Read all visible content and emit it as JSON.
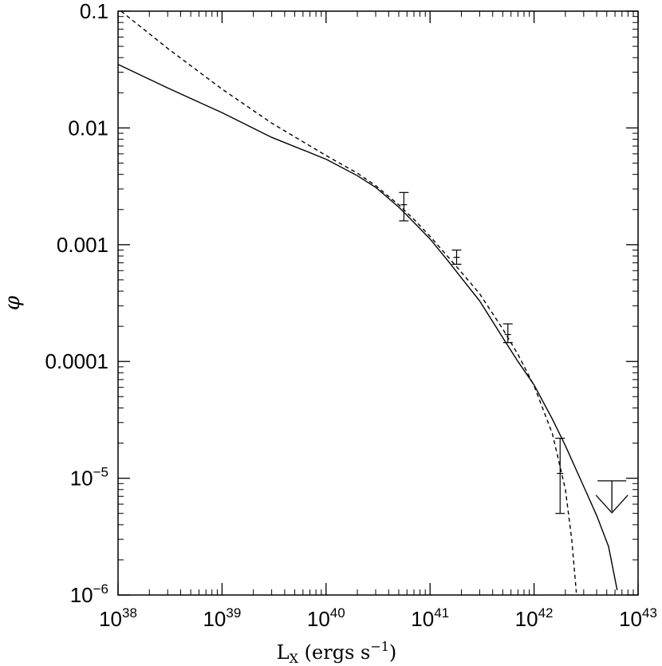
{
  "chart_data": {
    "type": "line",
    "xlabel": "L",
    "xlabel_sub": "X",
    "xlabel_units": " (ergs s",
    "xlabel_units_sup": "−1",
    "xlabel_units_close": ")",
    "ylabel": "φ",
    "x_scale": "log",
    "y_scale": "log",
    "xlim": [
      1e+38,
      1e+43
    ],
    "ylim": [
      1e-06,
      0.1
    ],
    "grid": false,
    "legend": "none",
    "x_ticks": [
      {
        "value": 1e+38,
        "base": "10",
        "exp": "38"
      },
      {
        "value": 1e+39,
        "base": "10",
        "exp": "39"
      },
      {
        "value": 1e+40,
        "base": "10",
        "exp": "40"
      },
      {
        "value": 1e+41,
        "base": "10",
        "exp": "41"
      },
      {
        "value": 1e+42,
        "base": "10",
        "exp": "42"
      },
      {
        "value": 1e+43,
        "base": "10",
        "exp": "43"
      }
    ],
    "y_ticks": [
      {
        "value": 0.1,
        "text": "0.1"
      },
      {
        "value": 0.01,
        "text": "0.01"
      },
      {
        "value": 0.001,
        "text": "0.001"
      },
      {
        "value": 0.0001,
        "text": "0.0001"
      },
      {
        "value": 1e-05,
        "base": "10",
        "exp": "−5"
      },
      {
        "value": 1e-06,
        "base": "10",
        "exp": "−6"
      }
    ],
    "series": [
      {
        "style": "solid",
        "x": [
          1e+38,
          3e+38,
          1e+39,
          3e+39,
          1e+40,
          2e+40,
          3e+40,
          5e+40,
          7e+40,
          1e+41,
          1.5e+41,
          2e+41,
          3e+41,
          5e+41,
          7e+41,
          1e+42,
          1.5e+42,
          2e+42,
          3e+42,
          4e+42,
          5.2e+42,
          6.3e+42
        ],
        "y": [
          0.035,
          0.022,
          0.0135,
          0.0083,
          0.0054,
          0.0039,
          0.0031,
          0.0021,
          0.00155,
          0.00112,
          0.00072,
          0.00052,
          0.00033,
          0.00016,
          0.0001,
          6.3e-05,
          3.2e-05,
          1.9e-05,
          8.5e-06,
          4.8e-06,
          2.6e-06,
          1.1e-06
        ]
      },
      {
        "style": "dashed",
        "x": [
          1.07e+38,
          3e+38,
          1e+39,
          3e+39,
          1e+40,
          2e+40,
          3e+40,
          5e+40,
          7e+40,
          1e+41,
          1.5e+41,
          2e+41,
          3e+41,
          5e+41,
          7e+41,
          1e+42,
          1.5e+42,
          2e+42,
          2.3e+42,
          2.55e+42
        ],
        "y": [
          0.1,
          0.048,
          0.0215,
          0.011,
          0.0058,
          0.0041,
          0.0032,
          0.0022,
          0.00165,
          0.00118,
          0.00078,
          0.00058,
          0.00038,
          0.00019,
          0.000115,
          6.2e-05,
          2.4e-05,
          8e-06,
          3e-06,
          1.05e-06
        ]
      }
    ],
    "error_points": [
      {
        "x": 5.6e+40,
        "y": 0.0022,
        "yerr_low": 0.0016,
        "yerr_high": 0.0028
      },
      {
        "x": 1.8e+41,
        "y": 0.00078,
        "yerr_low": 0.00068,
        "yerr_high": 0.0009
      },
      {
        "x": 5.6e+41,
        "y": 0.00017,
        "yerr_low": 0.000145,
        "yerr_high": 0.00021
      },
      {
        "x": 1.78e+42,
        "y": 1.1e-05,
        "yerr_low": 5e-06,
        "yerr_high": 2.2e-05
      }
    ],
    "upper_limits": [
      {
        "x": 5.6e+42,
        "y": 9.5e-06
      }
    ]
  }
}
